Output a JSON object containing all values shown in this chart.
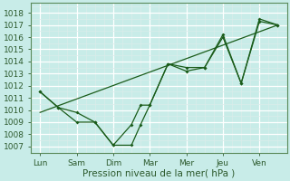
{
  "xlabel": "Pression niveau de la mer( hPa )",
  "bg_color": "#c8ece8",
  "grid_major_color": "#b0d4d0",
  "grid_minor_color": "#d8eeec",
  "line_color": "#1a5c1a",
  "ylim": [
    1006.5,
    1018.8
  ],
  "yticks": [
    1007,
    1008,
    1009,
    1010,
    1011,
    1012,
    1013,
    1014,
    1015,
    1016,
    1017,
    1018
  ],
  "xtick_labels": [
    "Lun",
    "Sam",
    "Dim",
    "Mar",
    "Mer",
    "Jeu",
    "Ven"
  ],
  "xtick_positions": [
    0,
    2,
    4,
    6,
    8,
    10,
    12
  ],
  "xlim": [
    -0.5,
    13.5
  ],
  "series1_x": [
    0,
    1,
    2,
    3,
    4,
    5,
    5.5,
    6,
    7,
    8,
    9,
    10,
    11,
    12,
    13
  ],
  "series1_y": [
    1011.5,
    1010.2,
    1009.8,
    1009.0,
    1007.1,
    1007.1,
    1008.8,
    1010.4,
    1013.8,
    1013.5,
    1013.5,
    1016.0,
    1012.2,
    1017.5,
    1017.0
  ],
  "series2_x": [
    0,
    1,
    2,
    3,
    4,
    5,
    5.5,
    6,
    7,
    8,
    9,
    10,
    11,
    12,
    13
  ],
  "series2_y": [
    1011.5,
    1010.2,
    1009.0,
    1009.0,
    1007.1,
    1008.8,
    1010.4,
    1010.4,
    1013.8,
    1013.2,
    1013.5,
    1016.2,
    1012.2,
    1017.3,
    1017.0
  ],
  "trend_x": [
    0,
    13
  ],
  "trend_y": [
    1009.8,
    1017.0
  ]
}
